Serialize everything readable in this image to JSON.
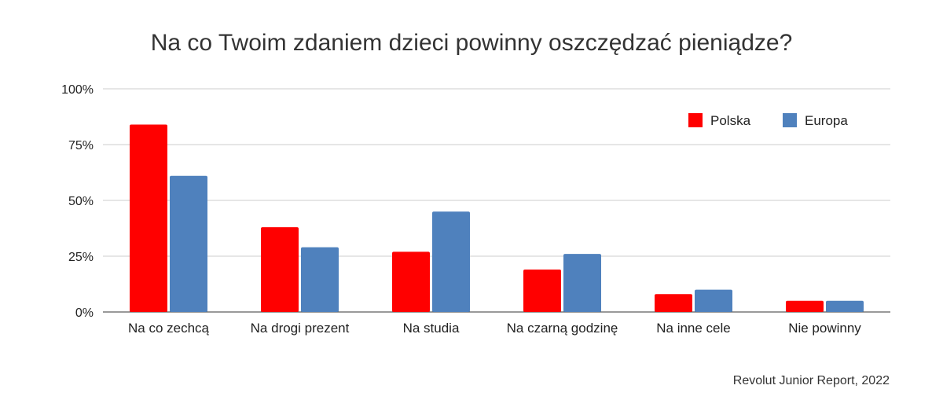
{
  "chart_data": {
    "type": "bar",
    "title": "Na co Twoim zdaniem dzieci powinny oszczędzać pieniądze?",
    "source": "Revolut Junior Report, 2022",
    "categories": [
      "Na co zechcą",
      "Na drogi prezent",
      "Na studia",
      "Na czarną godzinę",
      "Na inne cele",
      "Nie powinny"
    ],
    "series": [
      {
        "name": "Polska",
        "color": "#ff0000",
        "values": [
          84,
          38,
          27,
          19,
          8,
          5
        ]
      },
      {
        "name": "Europa",
        "color": "#4f81bd",
        "values": [
          61,
          29,
          45,
          26,
          10,
          5
        ]
      }
    ],
    "yticks": [
      "0%",
      "25%",
      "50%",
      "75%",
      "100%"
    ],
    "ylim": [
      0,
      100
    ],
    "grid": true,
    "legend_position": "top-right"
  }
}
